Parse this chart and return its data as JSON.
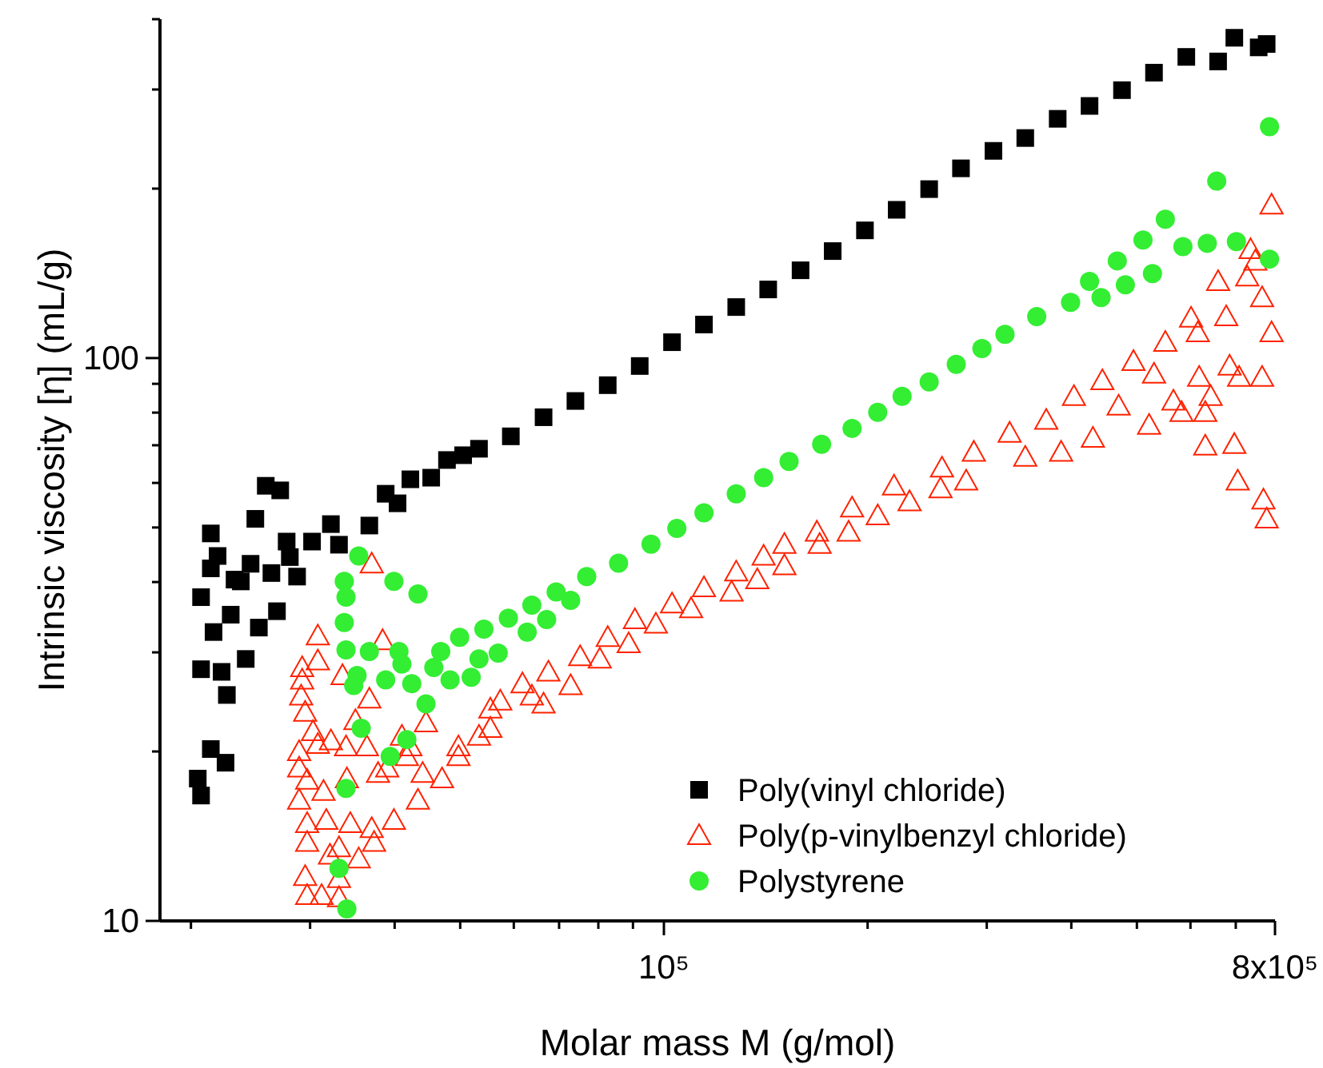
{
  "chart_data": {
    "type": "scatter",
    "xlabel": "Molar mass M (g/mol)",
    "ylabel": "Intrinsic viscosity [η] (mL/g)",
    "log": "xy",
    "grid": false,
    "legend": "bottom right",
    "xlim": [
      18000,
      800000
    ],
    "ylim": [
      10,
      400
    ],
    "xticks": [
      {
        "value": 20000,
        "label": null
      },
      {
        "value": 30000,
        "label": null
      },
      {
        "value": 40000,
        "label": null
      },
      {
        "value": 50000,
        "label": null
      },
      {
        "value": 60000,
        "label": null
      },
      {
        "value": 70000,
        "label": null
      },
      {
        "value": 80000,
        "label": null
      },
      {
        "value": 90000,
        "label": null
      },
      {
        "value": 100000,
        "label": "10⁵"
      },
      {
        "value": 200000,
        "label": null
      },
      {
        "value": 300000,
        "label": null
      },
      {
        "value": 400000,
        "label": null
      },
      {
        "value": 500000,
        "label": null
      },
      {
        "value": 600000,
        "label": null
      },
      {
        "value": 700000,
        "label": null
      },
      {
        "value": 800000,
        "label": "8x10⁵"
      }
    ],
    "yticks": [
      10,
      {
        "value": 20,
        "label": null
      },
      {
        "value": 30,
        "label": null
      },
      {
        "value": 40,
        "label": null
      },
      {
        "value": 50,
        "label": null
      },
      {
        "value": 60,
        "label": null
      },
      {
        "value": 70,
        "label": null
      },
      {
        "value": 80,
        "label": null
      },
      {
        "value": 90,
        "label": null
      },
      100,
      {
        "value": 200,
        "label": null
      },
      {
        "value": 300,
        "label": null
      },
      {
        "value": 400,
        "label": null
      }
    ],
    "series": [
      {
        "name": "Poly(vinyl chloride)",
        "color": "#000000",
        "marker": "square",
        "x": [
          20470,
          20700,
          21400,
          22500,
          20700,
          22200,
          22600,
          21600,
          22900,
          20700,
          21400,
          21900,
          21400,
          23200,
          23700,
          24100,
          24500,
          24900,
          25200,
          25800,
          27100,
          26300,
          26800,
          27700,
          28000,
          28700,
          30200,
          32200,
          33100,
          36700,
          38800,
          40400,
          42200,
          45300,
          47800,
          50500,
          53300,
          59400,
          66400,
          74000,
          82600,
          92100,
          102800,
          114600,
          127900,
          142600,
          159200,
          177600,
          198200,
          220800,
          246600,
          274800,
          306900,
          342000,
          381900,
          425600,
          475300,
          530000,
          591600,
          659200,
          696600,
          756800,
          777600
        ],
        "values": [
          17.9,
          16.7,
          20.2,
          19.1,
          28.0,
          27.7,
          25.2,
          32.6,
          35.0,
          37.6,
          42.3,
          44.5,
          48.8,
          40.4,
          40.1,
          29.2,
          43.1,
          51.8,
          33.2,
          59.3,
          58.2,
          41.5,
          35.5,
          47.2,
          44.3,
          40.9,
          47.2,
          50.7,
          46.6,
          50.4,
          57.4,
          55.2,
          60.9,
          61.3,
          65.9,
          67.2,
          69.0,
          72.6,
          78.5,
          83.9,
          89.5,
          96.8,
          106.7,
          114.7,
          123.2,
          132.4,
          143.2,
          154.9,
          168.6,
          183.4,
          199.6,
          217.3,
          233.4,
          246.0,
          266.1,
          280.5,
          299.2,
          321.4,
          342.8,
          336.5,
          370.7,
          356.4,
          361.4
        ]
      },
      {
        "name": "Poly(p-vinylbenzyl chloride)",
        "color": "#ff2200",
        "marker": "triangle",
        "x": [
          37000,
          30800,
          30800,
          38400,
          33500,
          29200,
          29200,
          29100,
          29500,
          36700,
          35000,
          30300,
          28900,
          30800,
          32200,
          33900,
          36400,
          41000,
          42200,
          44500,
          28900,
          29700,
          28900,
          31400,
          34000,
          37800,
          39000,
          41700,
          44000,
          47000,
          43300,
          39900,
          37000,
          34400,
          31700,
          29700,
          29700,
          32100,
          33100,
          35400,
          37300,
          33100,
          29500,
          31200,
          29700,
          33100,
          49700,
          53300,
          55400,
          57300,
          61800,
          63800,
          66400,
          67500,
          49700,
          55400,
          72800,
          75200,
          80400,
          82600,
          88700,
          90600,
          97300,
          102800,
          109700,
          114600,
          125900,
          127900,
          137400,
          140400,
          150700,
          150700,
          168300,
          169900,
          187500,
          189700,
          207000,
          218800,
          230700,
          256300,
          257600,
          279700,
          287100,
          324300,
          342000,
          367300,
          386400,
          403600,
          430500,
          444600,
          469900,
          494300,
          521200,
          530000,
          550800,
          566200,
          582100,
          601200,
          615200,
          618000,
          631000,
          631000,
          642700,
          659200,
          677600,
          685500,
          696600,
          704700,
          708000,
          727800,
          736200,
          748200,
          765600,
          765600,
          769100,
          777600,
          790700,
          790700
        ],
        "values": [
          43.1,
          32.1,
          29.0,
          31.5,
          27.3,
          28.2,
          26.8,
          25.1,
          23.5,
          24.8,
          22.7,
          21.7,
          20.0,
          20.6,
          20.9,
          20.4,
          20.4,
          21.3,
          20.4,
          22.5,
          18.7,
          17.8,
          16.4,
          17.0,
          17.9,
          18.3,
          18.7,
          19.6,
          18.3,
          17.9,
          16.4,
          15.1,
          14.6,
          14.9,
          15.1,
          14.9,
          13.8,
          13.1,
          13.5,
          12.9,
          13.8,
          11.9,
          12.0,
          11.1,
          11.1,
          11.0,
          20.4,
          21.3,
          23.8,
          24.6,
          26.4,
          25.1,
          24.3,
          27.7,
          19.6,
          22.0,
          26.2,
          29.5,
          29.2,
          31.9,
          31.1,
          34.3,
          33.7,
          36.6,
          35.9,
          39.1,
          38.4,
          41.7,
          40.4,
          44.5,
          42.8,
          46.7,
          49.1,
          46.7,
          49.1,
          54.2,
          52.5,
          59.3,
          55.6,
          58.6,
          63.8,
          60.5,
          68.1,
          73.6,
          66.7,
          77.6,
          68.1,
          85.5,
          72.1,
          91.2,
          82.2,
          98.7,
          76.0,
          93.7,
          106.7,
          83.9,
          80.1,
          117.8,
          111.0,
          92.5,
          80.1,
          69.8,
          85.5,
          136.8,
          118.5,
          96.8,
          70.3,
          60.5,
          92.5,
          139.4,
          155.9,
          148.8,
          128.1,
          92.5,
          56.0,
          51.8,
          187.1,
          111.0
        ]
      },
      {
        "name": "Polystyrene",
        "color": "#33ee33",
        "marker": "circle",
        "x": [
          35400,
          33700,
          33900,
          33700,
          33900,
          35200,
          34800,
          36700,
          38800,
          39900,
          43300,
          40600,
          41000,
          42400,
          44500,
          45700,
          46800,
          48300,
          49900,
          51900,
          53300,
          54200,
          56900,
          58900,
          62800,
          63800,
          67100,
          69300,
          35700,
          33900,
          33100,
          34000,
          41700,
          39400,
          72800,
          76900,
          85700,
          95700,
          104500,
          114600,
          127900,
          140400,
          153100,
          171000,
          189700,
          207000,
          224900,
          246600,
          270400,
          295100,
          319200,
          355600,
          399000,
          425600,
          442600,
          467700,
          480800,
          510500,
          527200,
          550800,
          584800,
          635300,
          656100,
          701500,
          785200,
          785200
        ],
        "values": [
          44.5,
          40.1,
          37.6,
          33.9,
          30.3,
          27.3,
          26.2,
          30.1,
          26.8,
          40.1,
          38.1,
          30.1,
          28.6,
          26.4,
          24.3,
          28.2,
          30.1,
          26.8,
          31.9,
          27.1,
          29.2,
          33.0,
          29.9,
          34.5,
          32.6,
          36.4,
          34.3,
          38.4,
          22.0,
          17.2,
          12.4,
          10.5,
          21.0,
          19.6,
          37.1,
          40.9,
          43.2,
          46.7,
          49.8,
          53.1,
          57.4,
          61.3,
          65.5,
          70.3,
          75.0,
          80.1,
          85.5,
          90.7,
          97.5,
          104.0,
          110.2,
          118.5,
          125.6,
          136.8,
          128.1,
          148.8,
          134.9,
          162.1,
          141.3,
          176.4,
          157.8,
          159.9,
          206.2,
          161.0,
          149.9,
          257.6
        ]
      }
    ]
  }
}
